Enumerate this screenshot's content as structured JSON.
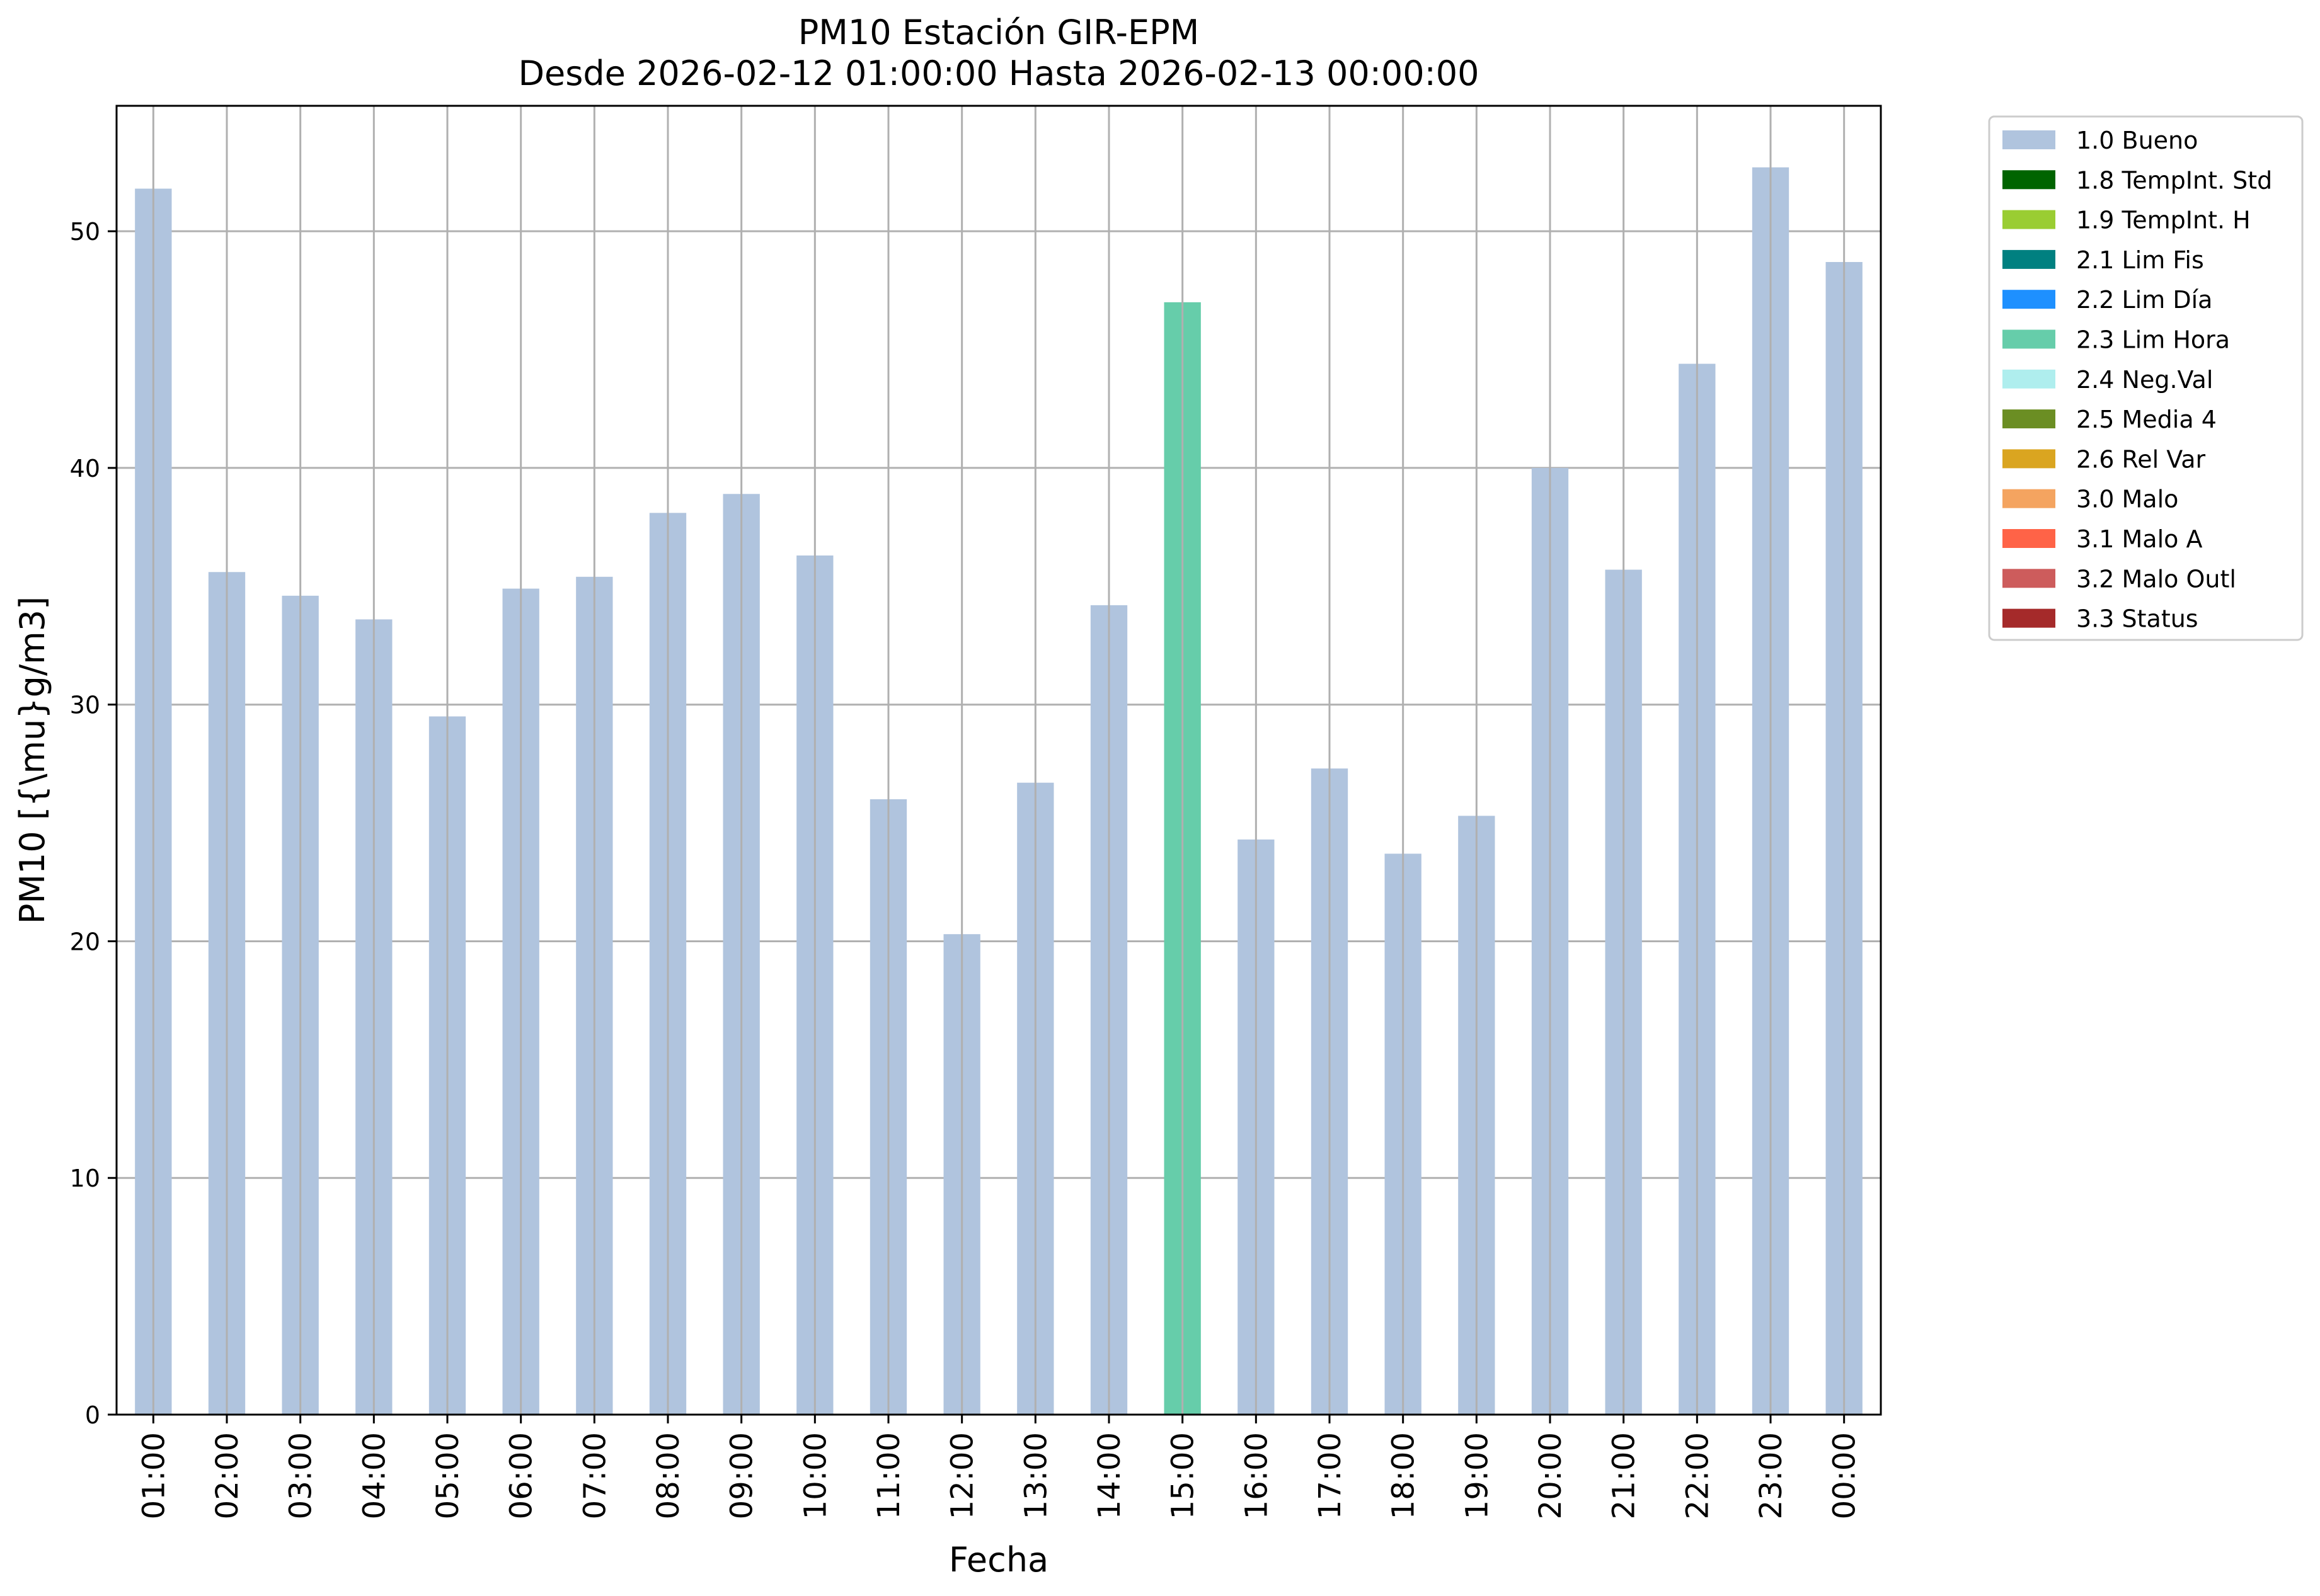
{
  "chart_data": {
    "type": "bar",
    "title": "PM10 Estación GIR-EPM",
    "subtitle": "Desde 2026-02-12 01:00:00 Hasta 2026-02-13 00:00:00",
    "xlabel": "Fecha",
    "ylabel": "PM10 [{\\mu}g/m3]",
    "ylim": [
      0,
      55.3
    ],
    "yticks": [
      "0",
      "10",
      "20",
      "30",
      "40",
      "50"
    ],
    "grid": true,
    "legend_position": "outside-top-right",
    "categories": [
      "01:00",
      "02:00",
      "03:00",
      "04:00",
      "05:00",
      "06:00",
      "07:00",
      "08:00",
      "09:00",
      "10:00",
      "11:00",
      "12:00",
      "13:00",
      "14:00",
      "15:00",
      "16:00",
      "17:00",
      "18:00",
      "19:00",
      "20:00",
      "21:00",
      "22:00",
      "23:00",
      "00:00"
    ],
    "values": [
      51.8,
      35.6,
      34.6,
      33.6,
      29.5,
      34.9,
      35.4,
      38.1,
      38.9,
      36.3,
      26.0,
      20.3,
      26.7,
      34.2,
      47.0,
      24.3,
      27.3,
      23.7,
      25.3,
      40.0,
      35.7,
      44.4,
      52.7,
      48.7
    ],
    "bar_flags": [
      "1.0 Bueno",
      "1.0 Bueno",
      "1.0 Bueno",
      "1.0 Bueno",
      "1.0 Bueno",
      "1.0 Bueno",
      "1.0 Bueno",
      "1.0 Bueno",
      "1.0 Bueno",
      "1.0 Bueno",
      "1.0 Bueno",
      "1.0 Bueno",
      "1.0 Bueno",
      "1.0 Bueno",
      "2.3 Lim Hora",
      "1.0 Bueno",
      "1.0 Bueno",
      "1.0 Bueno",
      "1.0 Bueno",
      "1.0 Bueno",
      "1.0 Bueno",
      "1.0 Bueno",
      "1.0 Bueno",
      "1.0 Bueno"
    ],
    "legend": [
      {
        "label": "1.0 Bueno",
        "color": "#b0c4de"
      },
      {
        "label": "1.8 TempInt. Std",
        "color": "#006400"
      },
      {
        "label": "1.9 TempInt. H",
        "color": "#9acd32"
      },
      {
        "label": "2.1 Lim Fis",
        "color": "#008080"
      },
      {
        "label": "2.2 Lim Día",
        "color": "#1e90ff"
      },
      {
        "label": "2.3 Lim Hora",
        "color": "#66cdaa"
      },
      {
        "label": "2.4 Neg.Val",
        "color": "#afeeee"
      },
      {
        "label": "2.5 Media 4",
        "color": "#6b8e23"
      },
      {
        "label": "2.6 Rel Var",
        "color": "#daa520"
      },
      {
        "label": "3.0 Malo",
        "color": "#f4a460"
      },
      {
        "label": "3.1 Malo A",
        "color": "#ff6347"
      },
      {
        "label": "3.2 Malo Outl",
        "color": "#cd5c5c"
      },
      {
        "label": "3.3 Status",
        "color": "#a52a2a"
      }
    ]
  }
}
